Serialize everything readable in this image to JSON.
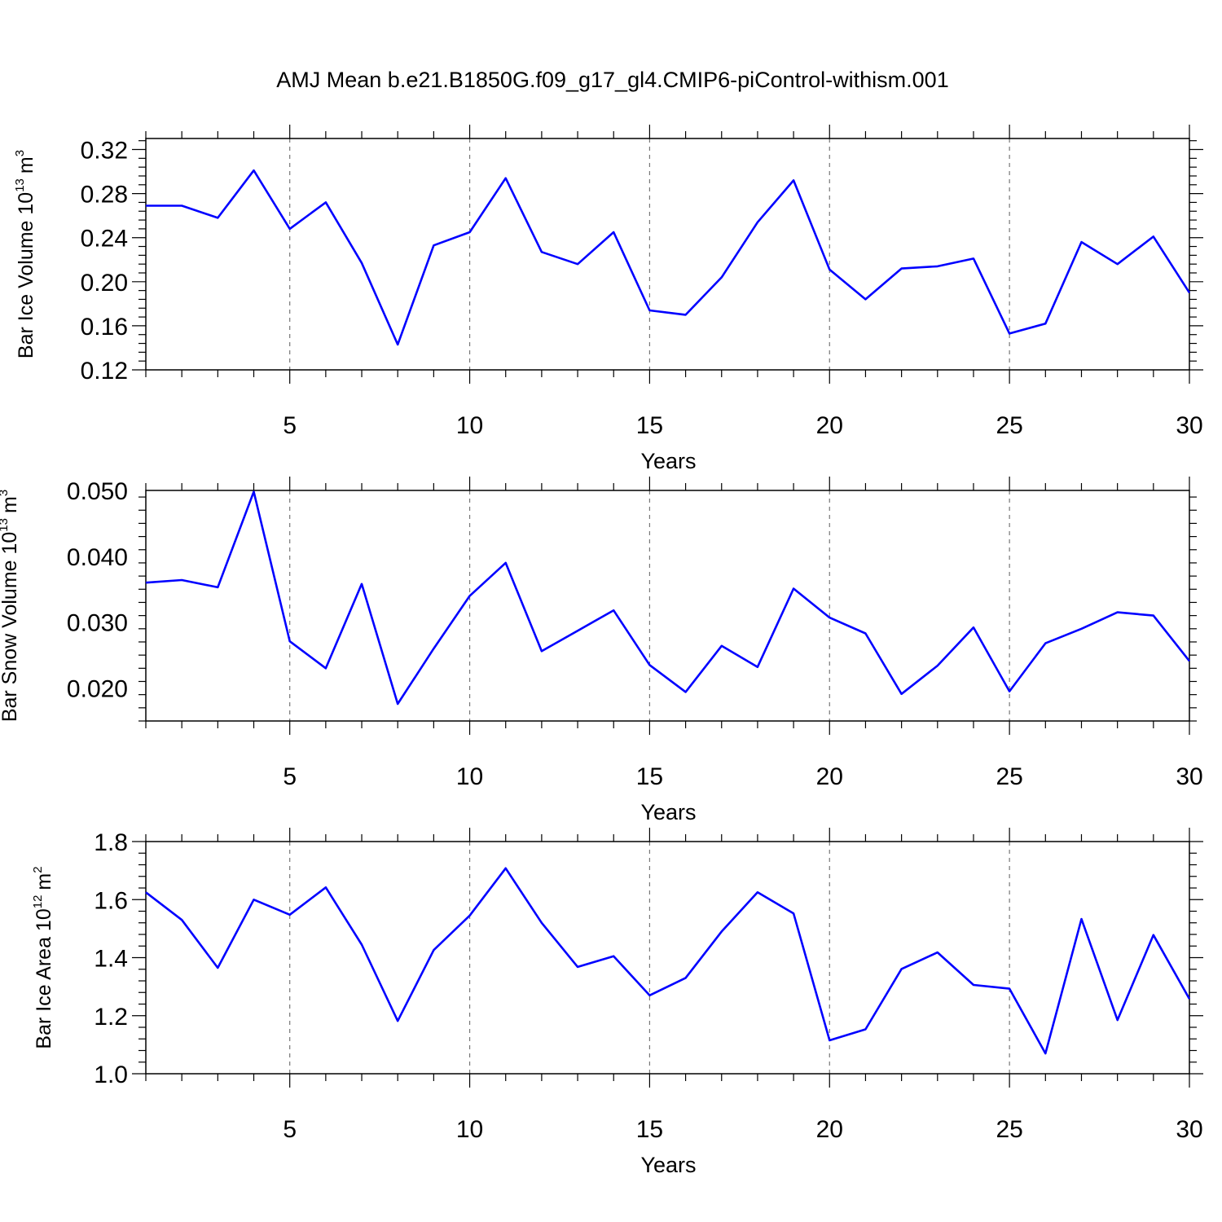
{
  "title": "AMJ Mean b.e21.B1850G.f09_g17_gl4.CMIP6-piControl-withism.001",
  "chart_data": [
    {
      "type": "line",
      "xlabel": "Years",
      "ylabel": {
        "text": "Bar Ice Volume 10",
        "exp": "13",
        "unit": "m",
        "unit_exp": "3"
      },
      "xlim": [
        1,
        30
      ],
      "ylim": [
        0.12,
        0.33
      ],
      "xticks": [
        5,
        10,
        15,
        20,
        25,
        30
      ],
      "yticks": [
        0.12,
        0.16,
        0.2,
        0.24,
        0.28,
        0.32
      ],
      "ytick_labels": [
        "0.12",
        "0.16",
        "0.20",
        "0.24",
        "0.28",
        "0.32"
      ],
      "grid": "vertical dashed at major x ticks",
      "color": "#0000ff",
      "x": [
        1,
        2,
        3,
        4,
        5,
        6,
        7,
        8,
        9,
        10,
        11,
        12,
        13,
        14,
        15,
        16,
        17,
        18,
        19,
        20,
        21,
        22,
        23,
        24,
        25,
        26,
        27,
        28,
        29,
        30
      ],
      "values": [
        0.269,
        0.269,
        0.258,
        0.301,
        0.248,
        0.272,
        0.217,
        0.143,
        0.233,
        0.245,
        0.294,
        0.227,
        0.216,
        0.245,
        0.174,
        0.17,
        0.204,
        0.254,
        0.292,
        0.211,
        0.184,
        0.212,
        0.214,
        0.221,
        0.153,
        0.162,
        0.236,
        0.216,
        0.241,
        0.19
      ]
    },
    {
      "type": "line",
      "xlabel": "Years",
      "ylabel": {
        "text": "Bar Snow Volume 10",
        "exp": "13",
        "unit": "m",
        "unit_exp": "3"
      },
      "xlim": [
        1,
        30
      ],
      "ylim": [
        0.015,
        0.05
      ],
      "xticks": [
        5,
        10,
        15,
        20,
        25,
        30
      ],
      "yticks": [
        0.02,
        0.03,
        0.04,
        0.05
      ],
      "ytick_labels": [
        "0.020",
        "0.030",
        "0.040",
        "0.050"
      ],
      "grid": "vertical dashed at major x ticks",
      "color": "#0000ff",
      "x": [
        1,
        2,
        3,
        4,
        5,
        6,
        7,
        8,
        9,
        10,
        11,
        12,
        13,
        14,
        15,
        16,
        17,
        18,
        19,
        20,
        21,
        22,
        23,
        24,
        25,
        26,
        27,
        28,
        29,
        30
      ],
      "values": [
        0.036,
        0.0364,
        0.0353,
        0.0498,
        0.0271,
        0.023,
        0.0358,
        0.0176,
        0.026,
        0.034,
        0.039,
        0.0256,
        0.0287,
        0.0318,
        0.0235,
        0.0194,
        0.0264,
        0.0232,
        0.0351,
        0.0307,
        0.0283,
        0.0191,
        0.0234,
        0.0292,
        0.0195,
        0.0268,
        0.029,
        0.0315,
        0.031,
        0.0241
      ]
    },
    {
      "type": "line",
      "xlabel": "Years",
      "ylabel": {
        "text": "Bar Ice Area 10",
        "exp": "12",
        "unit": "m",
        "unit_exp": "2"
      },
      "xlim": [
        1,
        30
      ],
      "ylim": [
        1.0,
        1.8
      ],
      "xticks": [
        5,
        10,
        15,
        20,
        25,
        30
      ],
      "yticks": [
        1.0,
        1.2,
        1.4,
        1.6,
        1.8
      ],
      "ytick_labels": [
        "1.0",
        "1.2",
        "1.4",
        "1.6",
        "1.8"
      ],
      "grid": "vertical dashed at major x ticks",
      "color": "#0000ff",
      "x": [
        1,
        2,
        3,
        4,
        5,
        6,
        7,
        8,
        9,
        10,
        11,
        12,
        13,
        14,
        15,
        16,
        17,
        18,
        19,
        20,
        21,
        22,
        23,
        24,
        25,
        26,
        27,
        28,
        29,
        30
      ],
      "values": [
        1.625,
        1.53,
        1.365,
        1.6,
        1.548,
        1.642,
        1.445,
        1.182,
        1.426,
        1.545,
        1.708,
        1.52,
        1.368,
        1.405,
        1.27,
        1.33,
        1.49,
        1.625,
        1.552,
        1.115,
        1.153,
        1.361,
        1.418,
        1.306,
        1.293,
        1.07,
        1.533,
        1.185,
        1.478,
        1.258
      ]
    }
  ]
}
